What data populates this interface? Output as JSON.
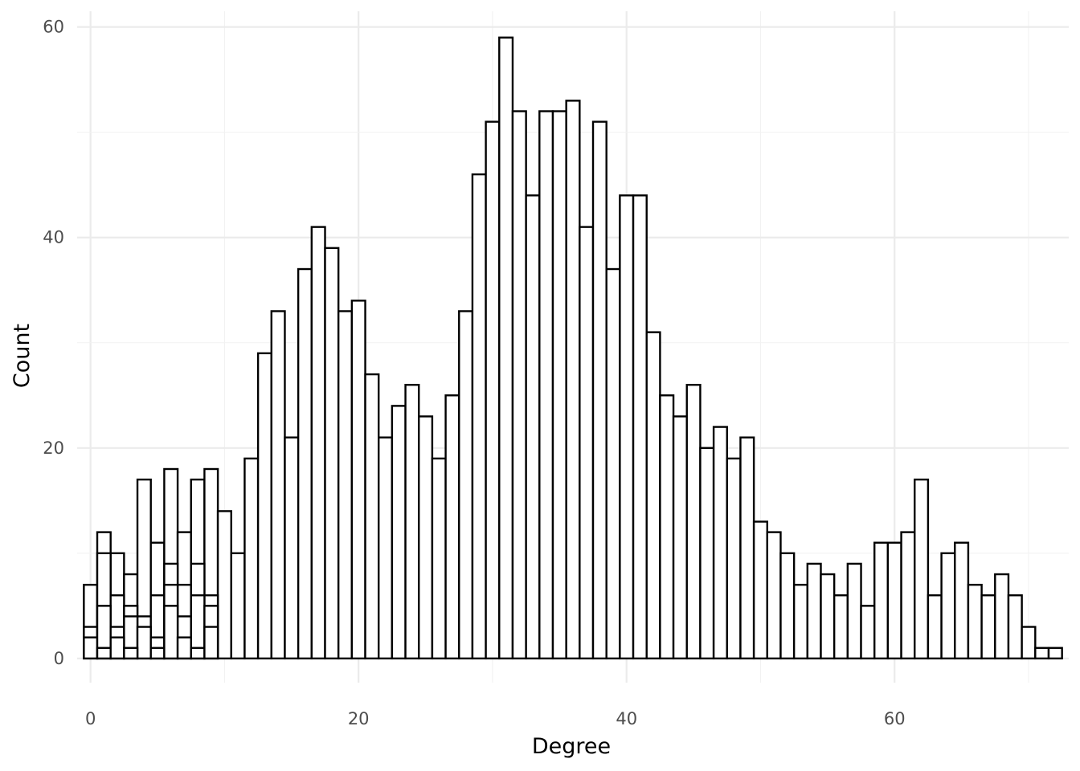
{
  "chart_data": {
    "type": "bar",
    "xlabel": "Degree",
    "ylabel": "Count",
    "xlim": [
      -1,
      73
    ],
    "ylim": [
      -2.3,
      61.5
    ],
    "x_ticks": [
      0,
      20,
      40,
      60
    ],
    "x_tick_labels": [
      "0",
      "20",
      "40",
      "60"
    ],
    "y_ticks": [
      0,
      20,
      40,
      60
    ],
    "y_tick_labels": [
      "0",
      "20",
      "40",
      "60"
    ],
    "bin_width": 1,
    "grid": true,
    "legend": "none",
    "colors": {
      "fill": "#ffffff",
      "outline": "#000000",
      "grid_major": "#ebebeb",
      "grid_minor": "#f2f2f2"
    },
    "series": [
      {
        "x": [
          0,
          1,
          2,
          3,
          4,
          5,
          6,
          7,
          8,
          9,
          10,
          11,
          12,
          13,
          14,
          15,
          16,
          17,
          18,
          19,
          20,
          21,
          22,
          23,
          24,
          25,
          26,
          27,
          28,
          29,
          30,
          31,
          32,
          33,
          34,
          35,
          36,
          37,
          38,
          39,
          40,
          41,
          42,
          43,
          44,
          45,
          46,
          47,
          48,
          49,
          50,
          51,
          52,
          53,
          54,
          55,
          56,
          57,
          58,
          59,
          60,
          61,
          62,
          63,
          64,
          65,
          66,
          67,
          68,
          69,
          70,
          71,
          72
        ],
        "values": [
          7,
          12,
          10,
          8,
          17,
          11,
          18,
          12,
          17,
          18,
          14,
          10,
          19,
          29,
          33,
          21,
          37,
          41,
          39,
          33,
          34,
          27,
          21,
          24,
          26,
          23,
          19,
          25,
          33,
          46,
          51,
          59,
          52,
          44,
          52,
          52,
          53,
          41,
          51,
          37,
          44,
          44,
          31,
          25,
          23,
          26,
          20,
          22,
          19,
          21,
          13,
          12,
          10,
          7,
          9,
          8,
          6,
          9,
          5,
          11,
          11,
          12,
          17,
          6,
          10,
          11,
          7,
          6,
          8,
          6,
          3,
          1,
          1
        ]
      },
      {
        "x": [
          0,
          1,
          2,
          3,
          4,
          5,
          6,
          7,
          8,
          9
        ],
        "values": [
          3,
          10,
          6,
          5,
          4,
          6,
          9,
          7,
          9,
          6
        ]
      },
      {
        "x": [
          0,
          1,
          2,
          3,
          4,
          5,
          6,
          7,
          8,
          9
        ],
        "values": [
          2,
          5,
          3,
          4,
          3,
          2,
          7,
          4,
          6,
          5
        ]
      },
      {
        "x": [
          0,
          1,
          2,
          3,
          4,
          5,
          6,
          7,
          8,
          9
        ],
        "values": [
          0,
          1,
          2,
          1,
          0,
          1,
          5,
          2,
          1,
          3
        ]
      }
    ]
  }
}
